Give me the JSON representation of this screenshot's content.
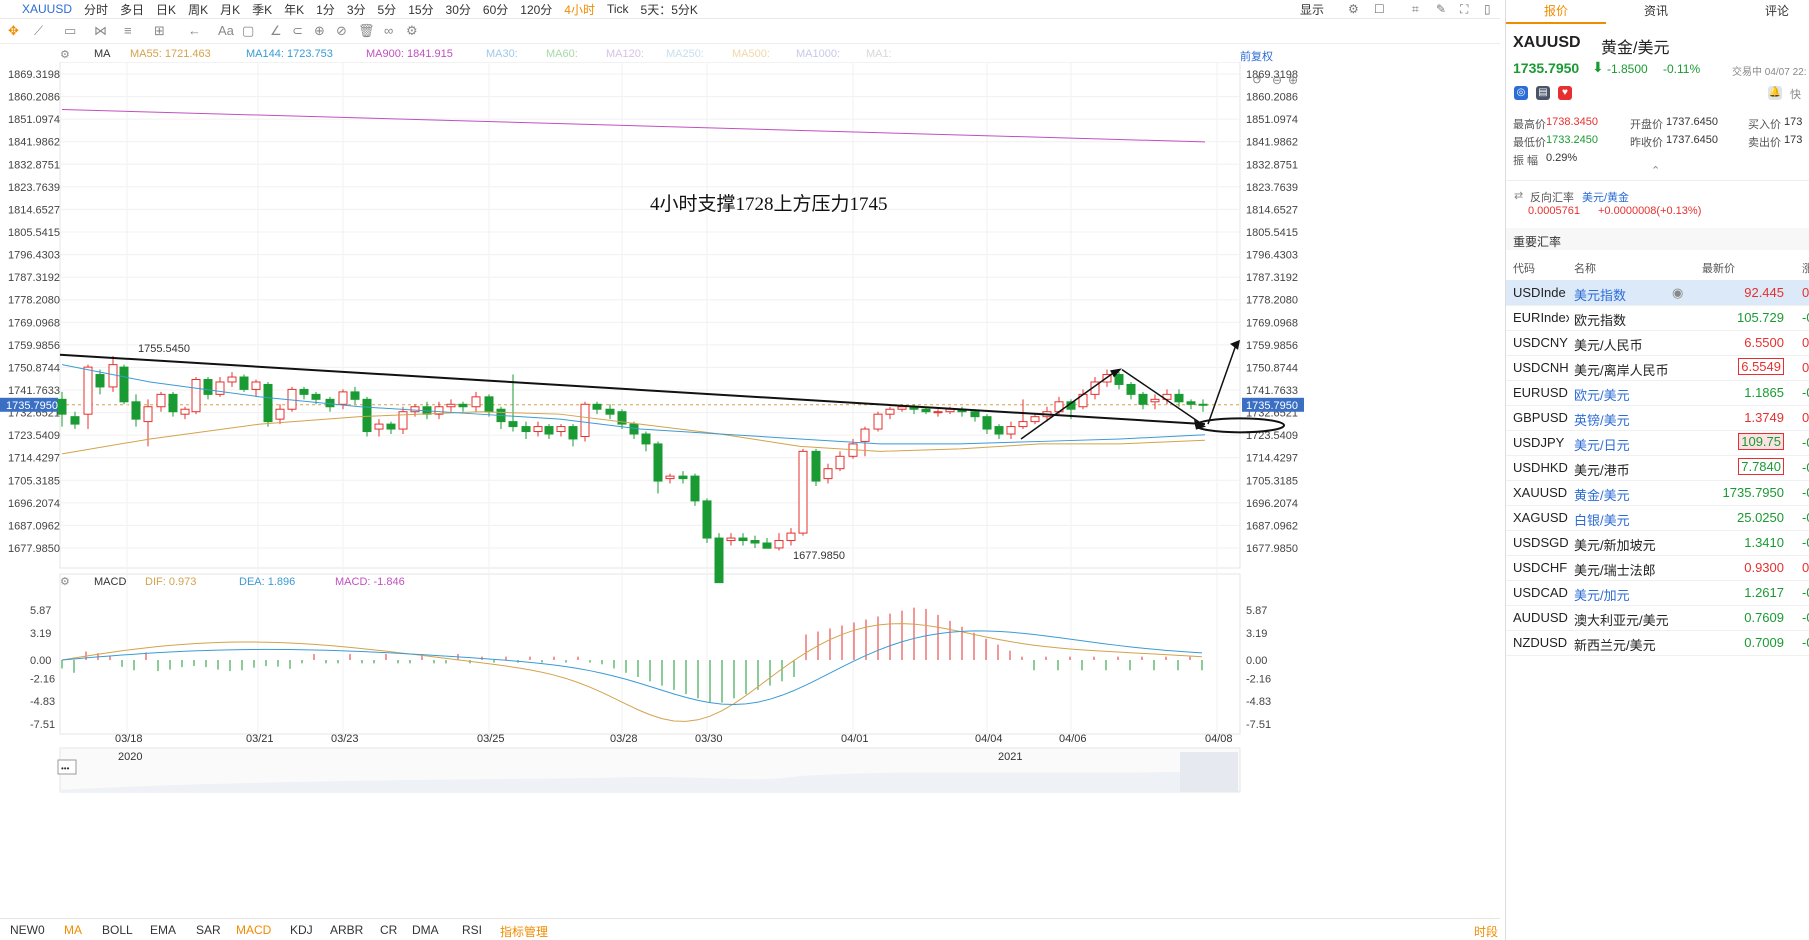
{
  "topbar": {
    "symbol": "XAUUSD",
    "periods": [
      "分时",
      "多日",
      "日K",
      "周K",
      "月K",
      "季K",
      "年K",
      "1分",
      "3分",
      "5分",
      "15分",
      "30分",
      "60分",
      "120分",
      "4小时",
      "Tick",
      "5天：5分K"
    ],
    "active_period": "4小时",
    "display_label": "显示"
  },
  "legend": {
    "ma": "MA",
    "ma55": "MA55: 1721.463",
    "ma144": "MA144: 1723.753",
    "ma900": "MA900: 1841.915",
    "ma30": "MA30:",
    "ma60": "MA60:",
    "ma120": "MA120:",
    "ma250": "MA250:",
    "ma500": "MA500:",
    "ma1000": "MA1000:",
    "ma1": "MA1:",
    "adjust": "前复权"
  },
  "colors": {
    "ma55": "#d4a24b",
    "ma144": "#3a9bd5",
    "ma900": "#c050c0",
    "up": "#e6302f",
    "down": "#1a9a32"
  },
  "price_axis": [
    "1869.3198",
    "1860.2086",
    "1851.0974",
    "1841.9862",
    "1832.8751",
    "1823.7639",
    "1814.6527",
    "1805.5415",
    "1796.4303",
    "1787.3192",
    "1778.2080",
    "1769.0968",
    "1759.9856",
    "1750.8744",
    "1741.7633",
    "1735.7950",
    "1732.6521",
    "1723.5409",
    "1714.4297",
    "1705.3185",
    "1696.2074",
    "1687.0962",
    "1677.9850"
  ],
  "current_price": "1735.7950",
  "annotation": "4小时支撑1728上方压力1745",
  "high_label": "1755.5450",
  "low_label": "1677.9850",
  "macd": {
    "title": "MACD",
    "dif": "DIF: 0.973",
    "dea": "DEA: 1.896",
    "macd": "MACD: -1.846",
    "axis": [
      "5.87",
      "3.19",
      "0.00",
      "-2.16",
      "-4.83",
      "-7.51"
    ]
  },
  "dates": [
    "03/18",
    "03/21",
    "03/23",
    "03/25",
    "03/28",
    "03/30",
    "04/01",
    "04/04",
    "04/06",
    "04/08"
  ],
  "years": [
    "2020",
    "2021"
  ],
  "bottombar": {
    "indicators": [
      "NEW0",
      "MA",
      "BOLL",
      "EMA",
      "SAR",
      "MACD",
      "KDJ",
      "ARBR",
      "CR",
      "DMA",
      "RSI",
      "指标管理"
    ],
    "right": "时段"
  },
  "right_panel": {
    "tabs": [
      "报价",
      "资讯",
      "评论"
    ],
    "symbol": "XAUUSD",
    "name": "黄金/美元",
    "price": "1735.7950",
    "change": "-1.8500",
    "change_pct": "-0.11%",
    "status": "交易中 04/07 22:",
    "stats": {
      "high_label": "最高价",
      "high": "1738.3450",
      "open_label": "开盘价",
      "open": "1737.6450",
      "bid_label": "买入价",
      "bid": "173",
      "low_label": "最低价",
      "low": "1733.2450",
      "prev_label": "昨收价",
      "prev": "1737.6450",
      "ask_label": "卖出价",
      "ask": "173",
      "amp_label": "振 幅",
      "amp": "0.29%"
    },
    "reverse": {
      "label": "反向汇率",
      "pair": "美元/黄金",
      "value": "0.0005761",
      "change": "+0.0000008(+0.13%)"
    },
    "section_title": "重要汇率",
    "table_headers": [
      "代码",
      "名称",
      "最新价",
      "涨"
    ],
    "rows": [
      {
        "code": "USDInde",
        "name": "美元指数",
        "price": "92.445",
        "chg": "0.",
        "dir": "up"
      },
      {
        "code": "EURIndex",
        "name": "欧元指数",
        "price": "105.729",
        "chg": "-0.",
        "dir": "down"
      },
      {
        "code": "USDCNY",
        "name": "美元/人民币",
        "price": "6.5500",
        "chg": "0.",
        "dir": "up"
      },
      {
        "code": "USDCNH",
        "name": "美元/离岸人民币",
        "price": "6.5549",
        "chg": "0.",
        "dir": "up"
      },
      {
        "code": "EURUSD",
        "name": "欧元/美元",
        "price": "1.1865",
        "chg": "-0.",
        "dir": "down"
      },
      {
        "code": "GBPUSD",
        "name": "英镑/美元",
        "price": "1.3749",
        "chg": "0.",
        "dir": "up"
      },
      {
        "code": "USDJPY",
        "name": "美元/日元",
        "price": "109.75",
        "chg": "-0.",
        "dir": "down"
      },
      {
        "code": "USDHKD",
        "name": "美元/港币",
        "price": "7.7840",
        "chg": "-0.",
        "dir": "down"
      },
      {
        "code": "XAUUSD",
        "name": "黄金/美元",
        "price": "1735.7950",
        "chg": "-0.",
        "dir": "down"
      },
      {
        "code": "XAGUSD",
        "name": "白银/美元",
        "price": "25.0250",
        "chg": "-0.",
        "dir": "down"
      },
      {
        "code": "USDSGD",
        "name": "美元/新加坡元",
        "price": "1.3410",
        "chg": "-0.",
        "dir": "down"
      },
      {
        "code": "USDCHF",
        "name": "美元/瑞士法郎",
        "price": "0.9300",
        "chg": "0.",
        "dir": "up"
      },
      {
        "code": "USDCAD",
        "name": "美元/加元",
        "price": "1.2617",
        "chg": "-0.",
        "dir": "down"
      },
      {
        "code": "AUDUSD",
        "name": "澳大利亚元/美元",
        "price": "0.7609",
        "chg": "-0.",
        "dir": "down"
      },
      {
        "code": "NZDUSD",
        "name": "新西兰元/美元",
        "price": "0.7009",
        "chg": "-0.",
        "dir": "down"
      }
    ]
  }
}
